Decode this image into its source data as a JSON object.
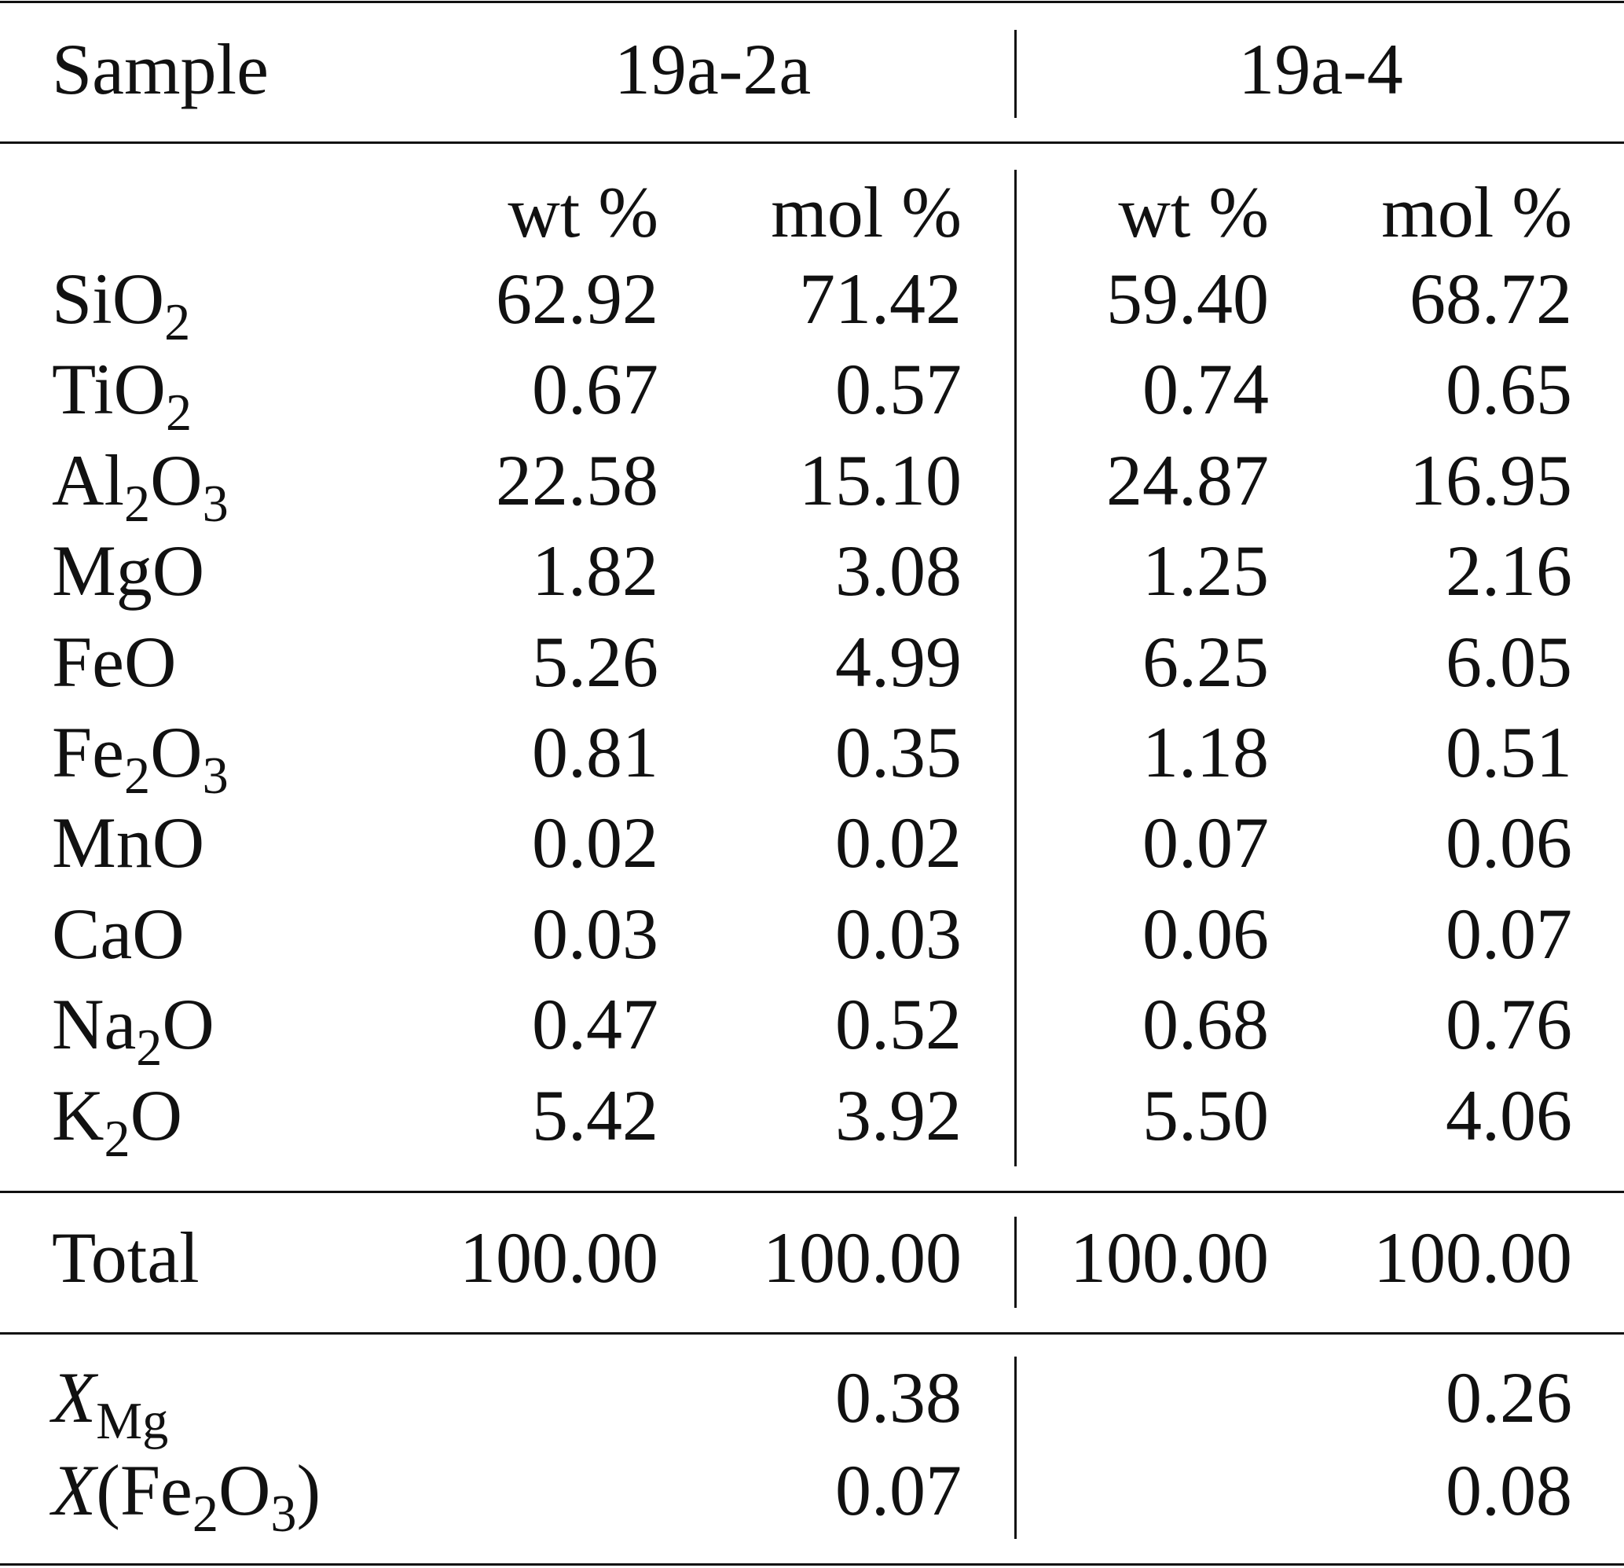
{
  "header": {
    "sample_label": "Sample",
    "samples": [
      "19a-2a",
      "19a-4"
    ]
  },
  "subheader": {
    "wt": "wt %",
    "mol": "mol %"
  },
  "rows": [
    {
      "label": [
        {
          "t": "SiO"
        },
        {
          "sub": "2"
        }
      ],
      "values": [
        "62.92",
        "71.42",
        "59.40",
        "68.72"
      ]
    },
    {
      "label": [
        {
          "t": "TiO"
        },
        {
          "sub": "2"
        }
      ],
      "values": [
        "0.67",
        "0.57",
        "0.74",
        "0.65"
      ]
    },
    {
      "label": [
        {
          "t": "Al"
        },
        {
          "sub": "2"
        },
        {
          "t": "O"
        },
        {
          "sub": "3"
        }
      ],
      "values": [
        "22.58",
        "15.10",
        "24.87",
        "16.95"
      ]
    },
    {
      "label": [
        {
          "t": "MgO"
        }
      ],
      "values": [
        "1.82",
        "3.08",
        "1.25",
        "2.16"
      ]
    },
    {
      "label": [
        {
          "t": "FeO"
        }
      ],
      "values": [
        "5.26",
        "4.99",
        "6.25",
        "6.05"
      ]
    },
    {
      "label": [
        {
          "t": "Fe"
        },
        {
          "sub": "2"
        },
        {
          "t": "O"
        },
        {
          "sub": "3"
        }
      ],
      "values": [
        "0.81",
        "0.35",
        "1.18",
        "0.51"
      ]
    },
    {
      "label": [
        {
          "t": "MnO"
        }
      ],
      "values": [
        "0.02",
        "0.02",
        "0.07",
        "0.06"
      ]
    },
    {
      "label": [
        {
          "t": "CaO"
        }
      ],
      "values": [
        "0.03",
        "0.03",
        "0.06",
        "0.07"
      ]
    },
    {
      "label": [
        {
          "t": "Na"
        },
        {
          "sub": "2"
        },
        {
          "t": "O"
        }
      ],
      "values": [
        "0.47",
        "0.52",
        "0.68",
        "0.76"
      ]
    },
    {
      "label": [
        {
          "t": "K"
        },
        {
          "sub": "2"
        },
        {
          "t": "O"
        }
      ],
      "values": [
        "5.42",
        "3.92",
        "5.50",
        "4.06"
      ]
    }
  ],
  "total": {
    "label": [
      {
        "t": "Total"
      }
    ],
    "values": [
      "100.00",
      "100.00",
      "100.00",
      "100.00"
    ]
  },
  "ratios": [
    {
      "label": [
        {
          "i": "X"
        },
        {
          "sub": "Mg"
        }
      ],
      "values": [
        "",
        "0.38",
        "",
        "0.26"
      ]
    },
    {
      "label": [
        {
          "i": "X"
        },
        {
          "t": "(Fe"
        },
        {
          "sub": "2"
        },
        {
          "t": "O"
        },
        {
          "sub": "3"
        },
        {
          "t": ")"
        }
      ],
      "values": [
        "",
        "0.07",
        "",
        "0.08"
      ]
    }
  ]
}
